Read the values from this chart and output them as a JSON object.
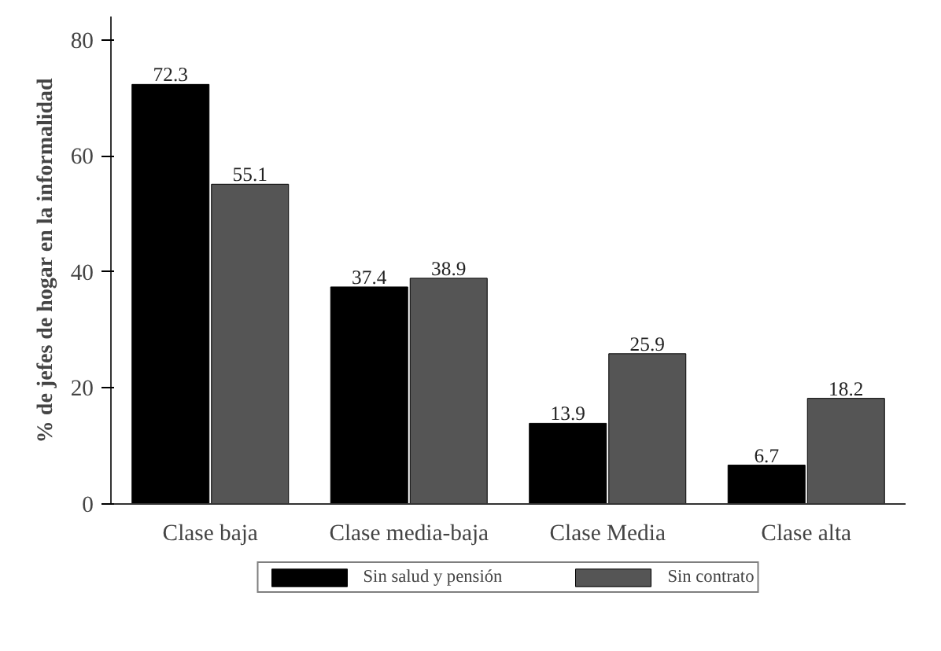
{
  "chart_data": {
    "type": "bar",
    "ylabel": "% de jefes de hogar en la informalidad",
    "categories": [
      "Clase baja",
      "Clase media-baja",
      "Clase Media",
      "Clase alta"
    ],
    "series": [
      {
        "name": "Sin salud y pensión",
        "color": "#000000",
        "values": [
          72.3,
          37.4,
          13.9,
          6.7
        ]
      },
      {
        "name": "Sin contrato",
        "color": "#555555",
        "values": [
          55.1,
          38.9,
          25.9,
          18.2
        ]
      }
    ],
    "ylim": [
      0,
      84
    ],
    "yticks": [
      0,
      20,
      40,
      60,
      80
    ],
    "grid": false,
    "legend": "bottom",
    "data_labels": true
  }
}
